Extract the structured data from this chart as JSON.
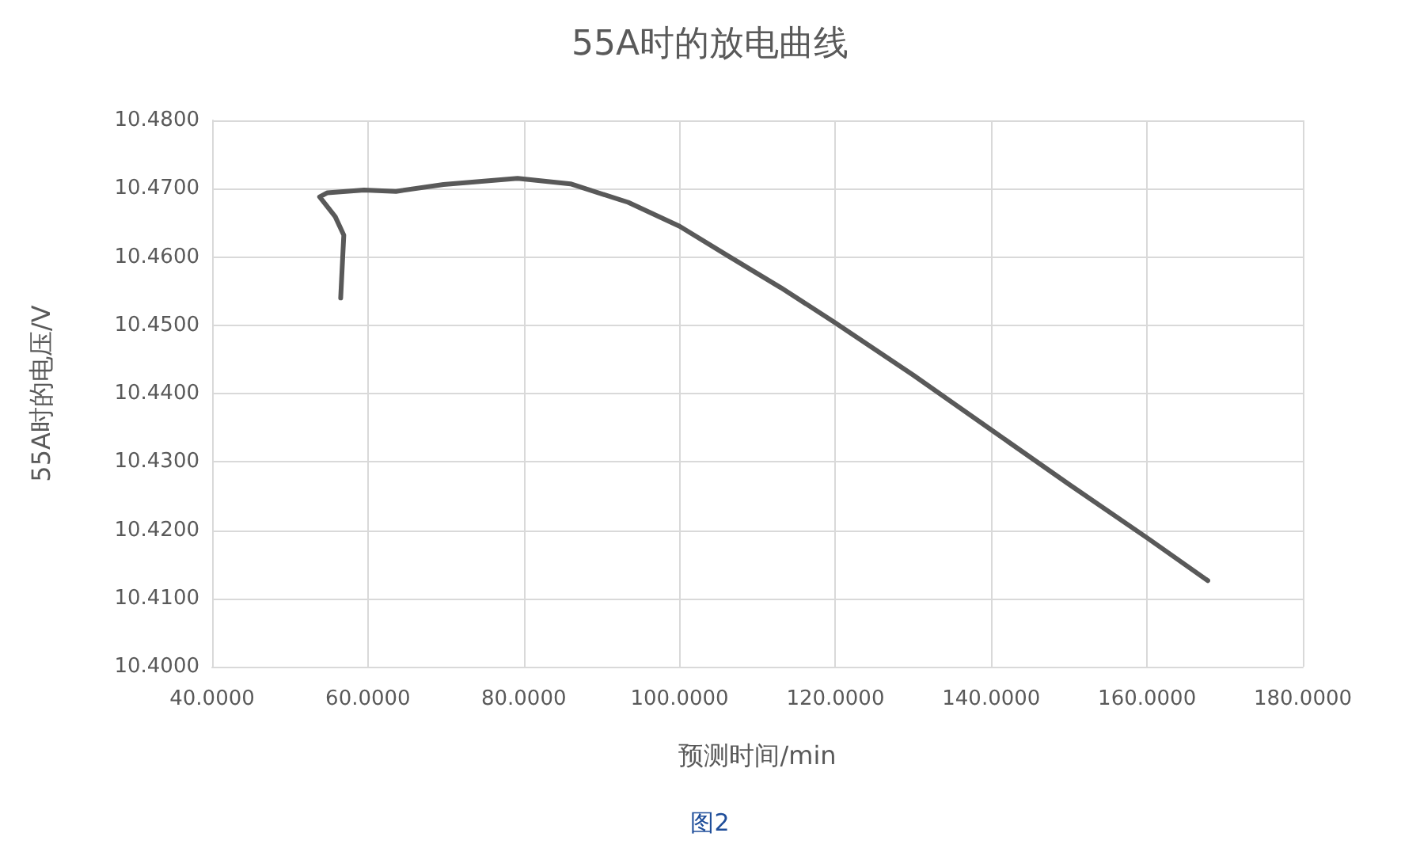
{
  "chart_data": {
    "type": "line",
    "title": "55A时的放电曲线",
    "xlabel": "预测时间/min",
    "ylabel": "55A时的电压/V",
    "annotations": [
      "图2"
    ],
    "series": [
      {
        "color": "#595959",
        "x": [
          56.5,
          56.9,
          55.8,
          53.8,
          54.8,
          59.5,
          63.6,
          69.7,
          79.2,
          86.0,
          93.4,
          100.0,
          106.3,
          113.0,
          119.8,
          130.0,
          140.1,
          150.0,
          160.1,
          167.8
        ],
        "values": [
          10.454,
          10.4632,
          10.4659,
          10.4688,
          10.4694,
          10.4698,
          10.4696,
          10.4706,
          10.4715,
          10.4707,
          10.468,
          10.4645,
          10.4601,
          10.4555,
          10.4505,
          10.4427,
          10.4346,
          10.4267,
          10.4188,
          10.4126
        ]
      }
    ],
    "xlim": [
      40,
      180
    ],
    "xticks": [
      {
        "value": 40,
        "label": "40.0000"
      },
      {
        "value": 60,
        "label": "60.0000"
      },
      {
        "value": 80,
        "label": "80.0000"
      },
      {
        "value": 100,
        "label": "100.0000"
      },
      {
        "value": 120,
        "label": "120.0000"
      },
      {
        "value": 140,
        "label": "140.0000"
      },
      {
        "value": 160,
        "label": "160.0000"
      },
      {
        "value": 180,
        "label": "180.0000"
      }
    ],
    "ylim": [
      10.4,
      10.48
    ],
    "yticks": [
      {
        "value": 10.4,
        "label": "10.4000"
      },
      {
        "value": 10.41,
        "label": "10.4100"
      },
      {
        "value": 10.42,
        "label": "10.4200"
      },
      {
        "value": 10.43,
        "label": "10.4300"
      },
      {
        "value": 10.44,
        "label": "10.4400"
      },
      {
        "value": 10.45,
        "label": "10.4500"
      },
      {
        "value": 10.46,
        "label": "10.4600"
      },
      {
        "value": 10.47,
        "label": "10.4700"
      },
      {
        "value": 10.48,
        "label": "10.4800"
      }
    ],
    "grid": true,
    "marker": "none",
    "line_style": "solid"
  }
}
